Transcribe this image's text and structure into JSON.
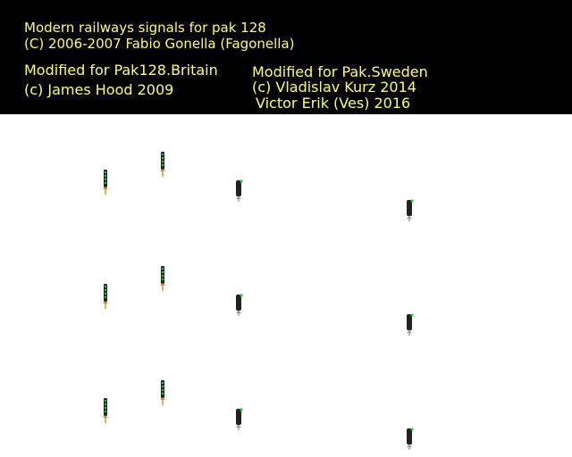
{
  "credits": {
    "line1": "Modern railways signals for pak 128",
    "line2": "(C) 2006-2007 Fabio Gonella (Fagonella)",
    "line3": "Modified for Pak128.Britain",
    "line4": "(c) James Hood 2009",
    "line5": "Modified for Pak.Sweden",
    "line6": "(c) Vladislav Kurz 2014",
    "line7": "Victor Erik (Ves) 2016"
  },
  "colors": {
    "header_background": "#000000",
    "credit_text": "#ffff66",
    "canvas_background": "#ffffff",
    "signal_body": "#222222",
    "lamp_green": "#22cc44",
    "base_orange": "#d08a1a",
    "base_grey": "#9a9a9a"
  },
  "signal_rows": [
    {
      "row": "row-1",
      "sprites": [
        {
          "icon": "tall-signal-icon",
          "lamp": "green"
        },
        {
          "icon": "tall-signal-icon",
          "lamp": "green"
        },
        {
          "icon": "short-signal-icon",
          "lamp": "green"
        },
        {
          "icon": "short-signal-icon",
          "lamp": "green"
        }
      ]
    },
    {
      "row": "row-2",
      "sprites": [
        {
          "icon": "tall-signal-icon",
          "lamp": "green"
        },
        {
          "icon": "tall-signal-icon",
          "lamp": "green"
        },
        {
          "icon": "short-signal-icon",
          "lamp": "green"
        },
        {
          "icon": "short-signal-icon",
          "lamp": "green"
        }
      ]
    },
    {
      "row": "row-3",
      "sprites": [
        {
          "icon": "tall-signal-icon",
          "lamp": "green"
        },
        {
          "icon": "tall-signal-icon",
          "lamp": "green"
        },
        {
          "icon": "short-signal-icon",
          "lamp": "green"
        },
        {
          "icon": "short-signal-icon",
          "lamp": "green"
        }
      ]
    }
  ]
}
